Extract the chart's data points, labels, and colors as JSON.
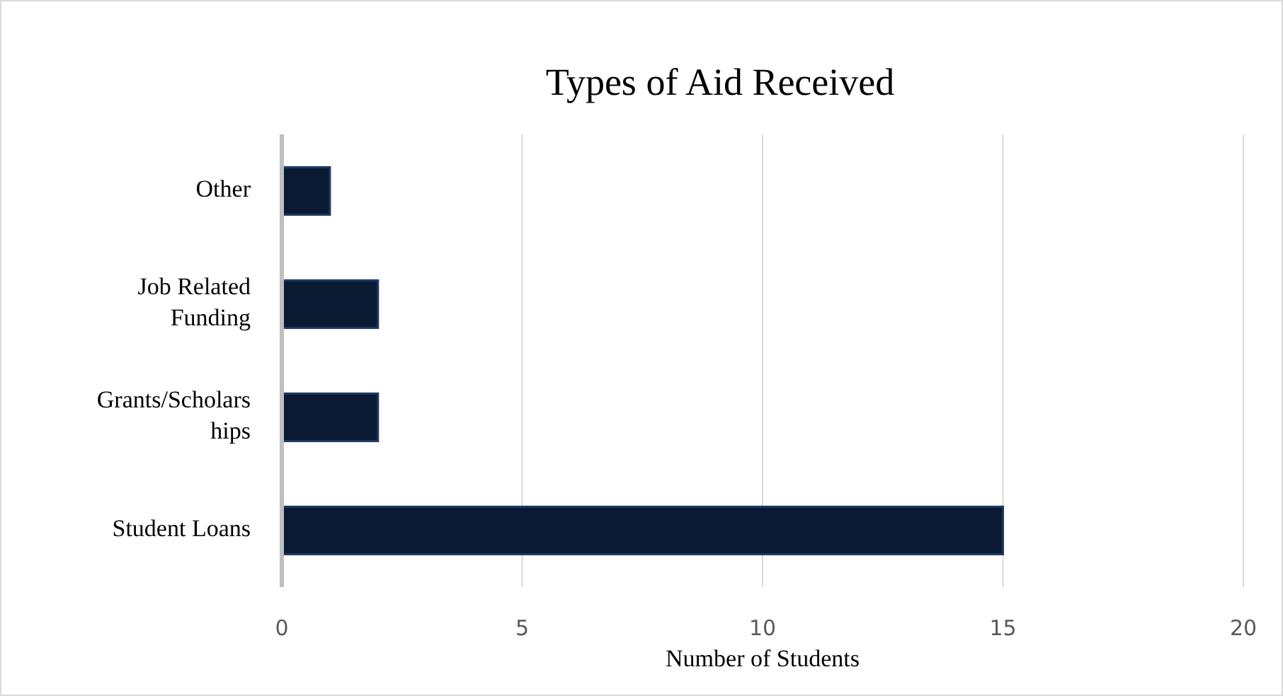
{
  "chart_data": {
    "type": "bar",
    "orientation": "horizontal",
    "title": "Types of Aid Received",
    "xlabel": "Number of Students",
    "categories": [
      "Other",
      "Job Related Funding",
      "Grants/Scholarships",
      "Student Loans"
    ],
    "values": [
      1,
      2,
      2,
      15
    ],
    "color": "#0b1a33",
    "xlim": [
      0,
      20
    ],
    "xticks": [
      0,
      5,
      10,
      15,
      20
    ],
    "grid": "x"
  }
}
